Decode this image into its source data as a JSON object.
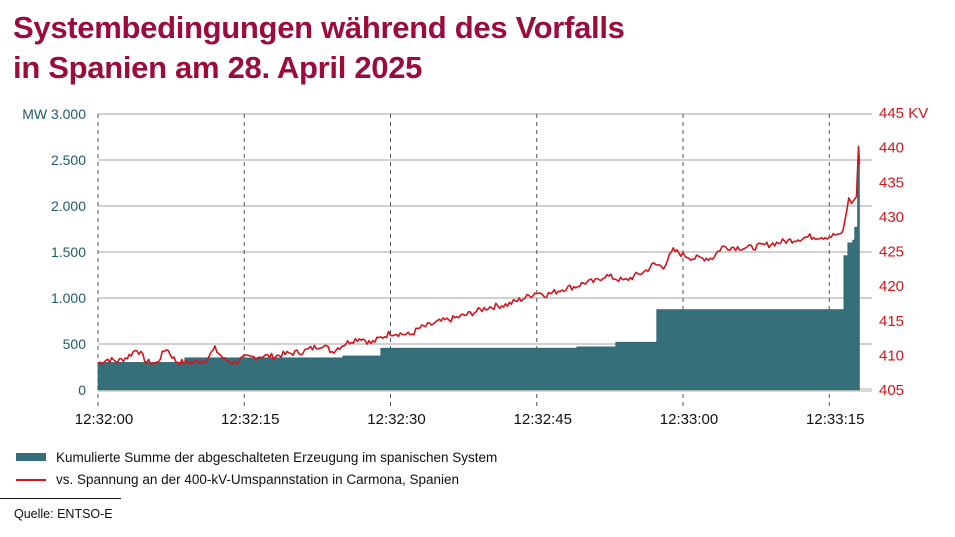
{
  "title_line1": "Systembedingungen während des Vorfalls",
  "title_line2": "in Spanien am 28. April 2025",
  "colors": {
    "title": "#9b0c3b",
    "area": "#35707a",
    "line": "#d0161e",
    "left_axis": "#1f5b66",
    "right_axis": "#d0161e",
    "grid": "#b5b5b5"
  },
  "legend": {
    "area_label": "Kumulierte Summe der abgeschalteten Erzeugung im spanischen System",
    "line_label": "vs. Spannung an der 400-kV-Umspannstation in Carmona, Spanien"
  },
  "source": "Quelle: ENTSO-E",
  "chart_data": {
    "type": "area+line",
    "title": "Systembedingungen während des Vorfalls in Spanien am 28. April 2025",
    "xlabel": "",
    "x_unit": "seconds after 12:32:00",
    "xlim": [
      0,
      78.1
    ],
    "x_ticks": [
      0,
      15,
      30,
      45,
      60,
      75
    ],
    "x_tick_labels": [
      "12:32:00",
      "12:32:15",
      "12:32:30",
      "12:32:45",
      "12:33:00",
      "12:33:15"
    ],
    "left_axis": {
      "unit_label": "MW",
      "ylim": [
        0,
        3000
      ],
      "ticks": [
        0,
        500,
        1000,
        1500,
        2000,
        2500,
        3000
      ],
      "tick_labels": [
        "0",
        "500",
        "1.000",
        "1.500",
        "2.000",
        "2.500",
        "MW 3.000"
      ]
    },
    "right_axis": {
      "unit_label": "KV",
      "ylim": [
        405,
        445
      ],
      "ticks": [
        405,
        410,
        415,
        420,
        425,
        430,
        435,
        440,
        445
      ],
      "tick_labels": [
        "405",
        "410",
        "415",
        "420",
        "425",
        "430",
        "435",
        "440",
        "445 KV"
      ]
    },
    "grid": {
      "horizontal": true,
      "vertical_dashed": true
    },
    "series": [
      {
        "name": "Kumulierte Summe der abgeschalteten Erzeugung im spanischen System",
        "type": "step-area",
        "axis": "left",
        "points": [
          [
            0,
            300
          ],
          [
            8.9,
            350
          ],
          [
            25.1,
            370
          ],
          [
            29.0,
            455
          ],
          [
            49.1,
            470
          ],
          [
            53.1,
            520
          ],
          [
            57.3,
            875
          ],
          [
            76.5,
            1460
          ],
          [
            76.9,
            1600
          ],
          [
            77.4,
            1630
          ],
          [
            77.6,
            1770
          ],
          [
            77.9,
            2500
          ],
          [
            78.1,
            2500
          ]
        ]
      },
      {
        "name": "vs. Spannung an der 400-kV-Umspannstation in Carmona, Spanien",
        "type": "line",
        "axis": "right",
        "points": [
          [
            0,
            408.7
          ],
          [
            1,
            409.3
          ],
          [
            2,
            409.0
          ],
          [
            3,
            409.6
          ],
          [
            4,
            410.8
          ],
          [
            5,
            408.9
          ],
          [
            6,
            408.7
          ],
          [
            7,
            410.9
          ],
          [
            8,
            409.0
          ],
          [
            9,
            408.8
          ],
          [
            10,
            408.9
          ],
          [
            11,
            409.2
          ],
          [
            12,
            410.8
          ],
          [
            13,
            409.2
          ],
          [
            14,
            408.8
          ],
          [
            15,
            409.5
          ],
          [
            16,
            409.6
          ],
          [
            17,
            409.8
          ],
          [
            18,
            409.7
          ],
          [
            19,
            410.0
          ],
          [
            20,
            410.2
          ],
          [
            21,
            410.4
          ],
          [
            22,
            410.9
          ],
          [
            23,
            411.4
          ],
          [
            24,
            410.4
          ],
          [
            25,
            411.3
          ],
          [
            26,
            412.0
          ],
          [
            27,
            412.4
          ],
          [
            28,
            411.6
          ],
          [
            29,
            412.4
          ],
          [
            30,
            413.1
          ],
          [
            31,
            413.0
          ],
          [
            32,
            412.8
          ],
          [
            33,
            413.8
          ],
          [
            34,
            414.2
          ],
          [
            35,
            414.7
          ],
          [
            36,
            415.0
          ],
          [
            38,
            415.8
          ],
          [
            40,
            416.8
          ],
          [
            42,
            417.2
          ],
          [
            44,
            418.3
          ],
          [
            45,
            419.0
          ],
          [
            46,
            418.6
          ],
          [
            47,
            419.1
          ],
          [
            48,
            419.6
          ],
          [
            49,
            419.8
          ],
          [
            50,
            420.4
          ],
          [
            51,
            420.5
          ],
          [
            52,
            421.4
          ],
          [
            53,
            421.0
          ],
          [
            54,
            420.6
          ],
          [
            55,
            421.3
          ],
          [
            56,
            421.9
          ],
          [
            57,
            423.0
          ],
          [
            58,
            422.7
          ],
          [
            59,
            425.0
          ],
          [
            60,
            424.4
          ],
          [
            61,
            423.9
          ],
          [
            63,
            423.9
          ],
          [
            64,
            425.5
          ],
          [
            67,
            425.4
          ],
          [
            70,
            426.2
          ],
          [
            73,
            427.0
          ],
          [
            75,
            427.0
          ],
          [
            76,
            427.4
          ],
          [
            76.4,
            427.5
          ],
          [
            77.0,
            432.6
          ],
          [
            77.3,
            431.8
          ],
          [
            77.8,
            432.8
          ],
          [
            78.0,
            440.0
          ],
          [
            78.1,
            437.5
          ]
        ]
      }
    ]
  }
}
